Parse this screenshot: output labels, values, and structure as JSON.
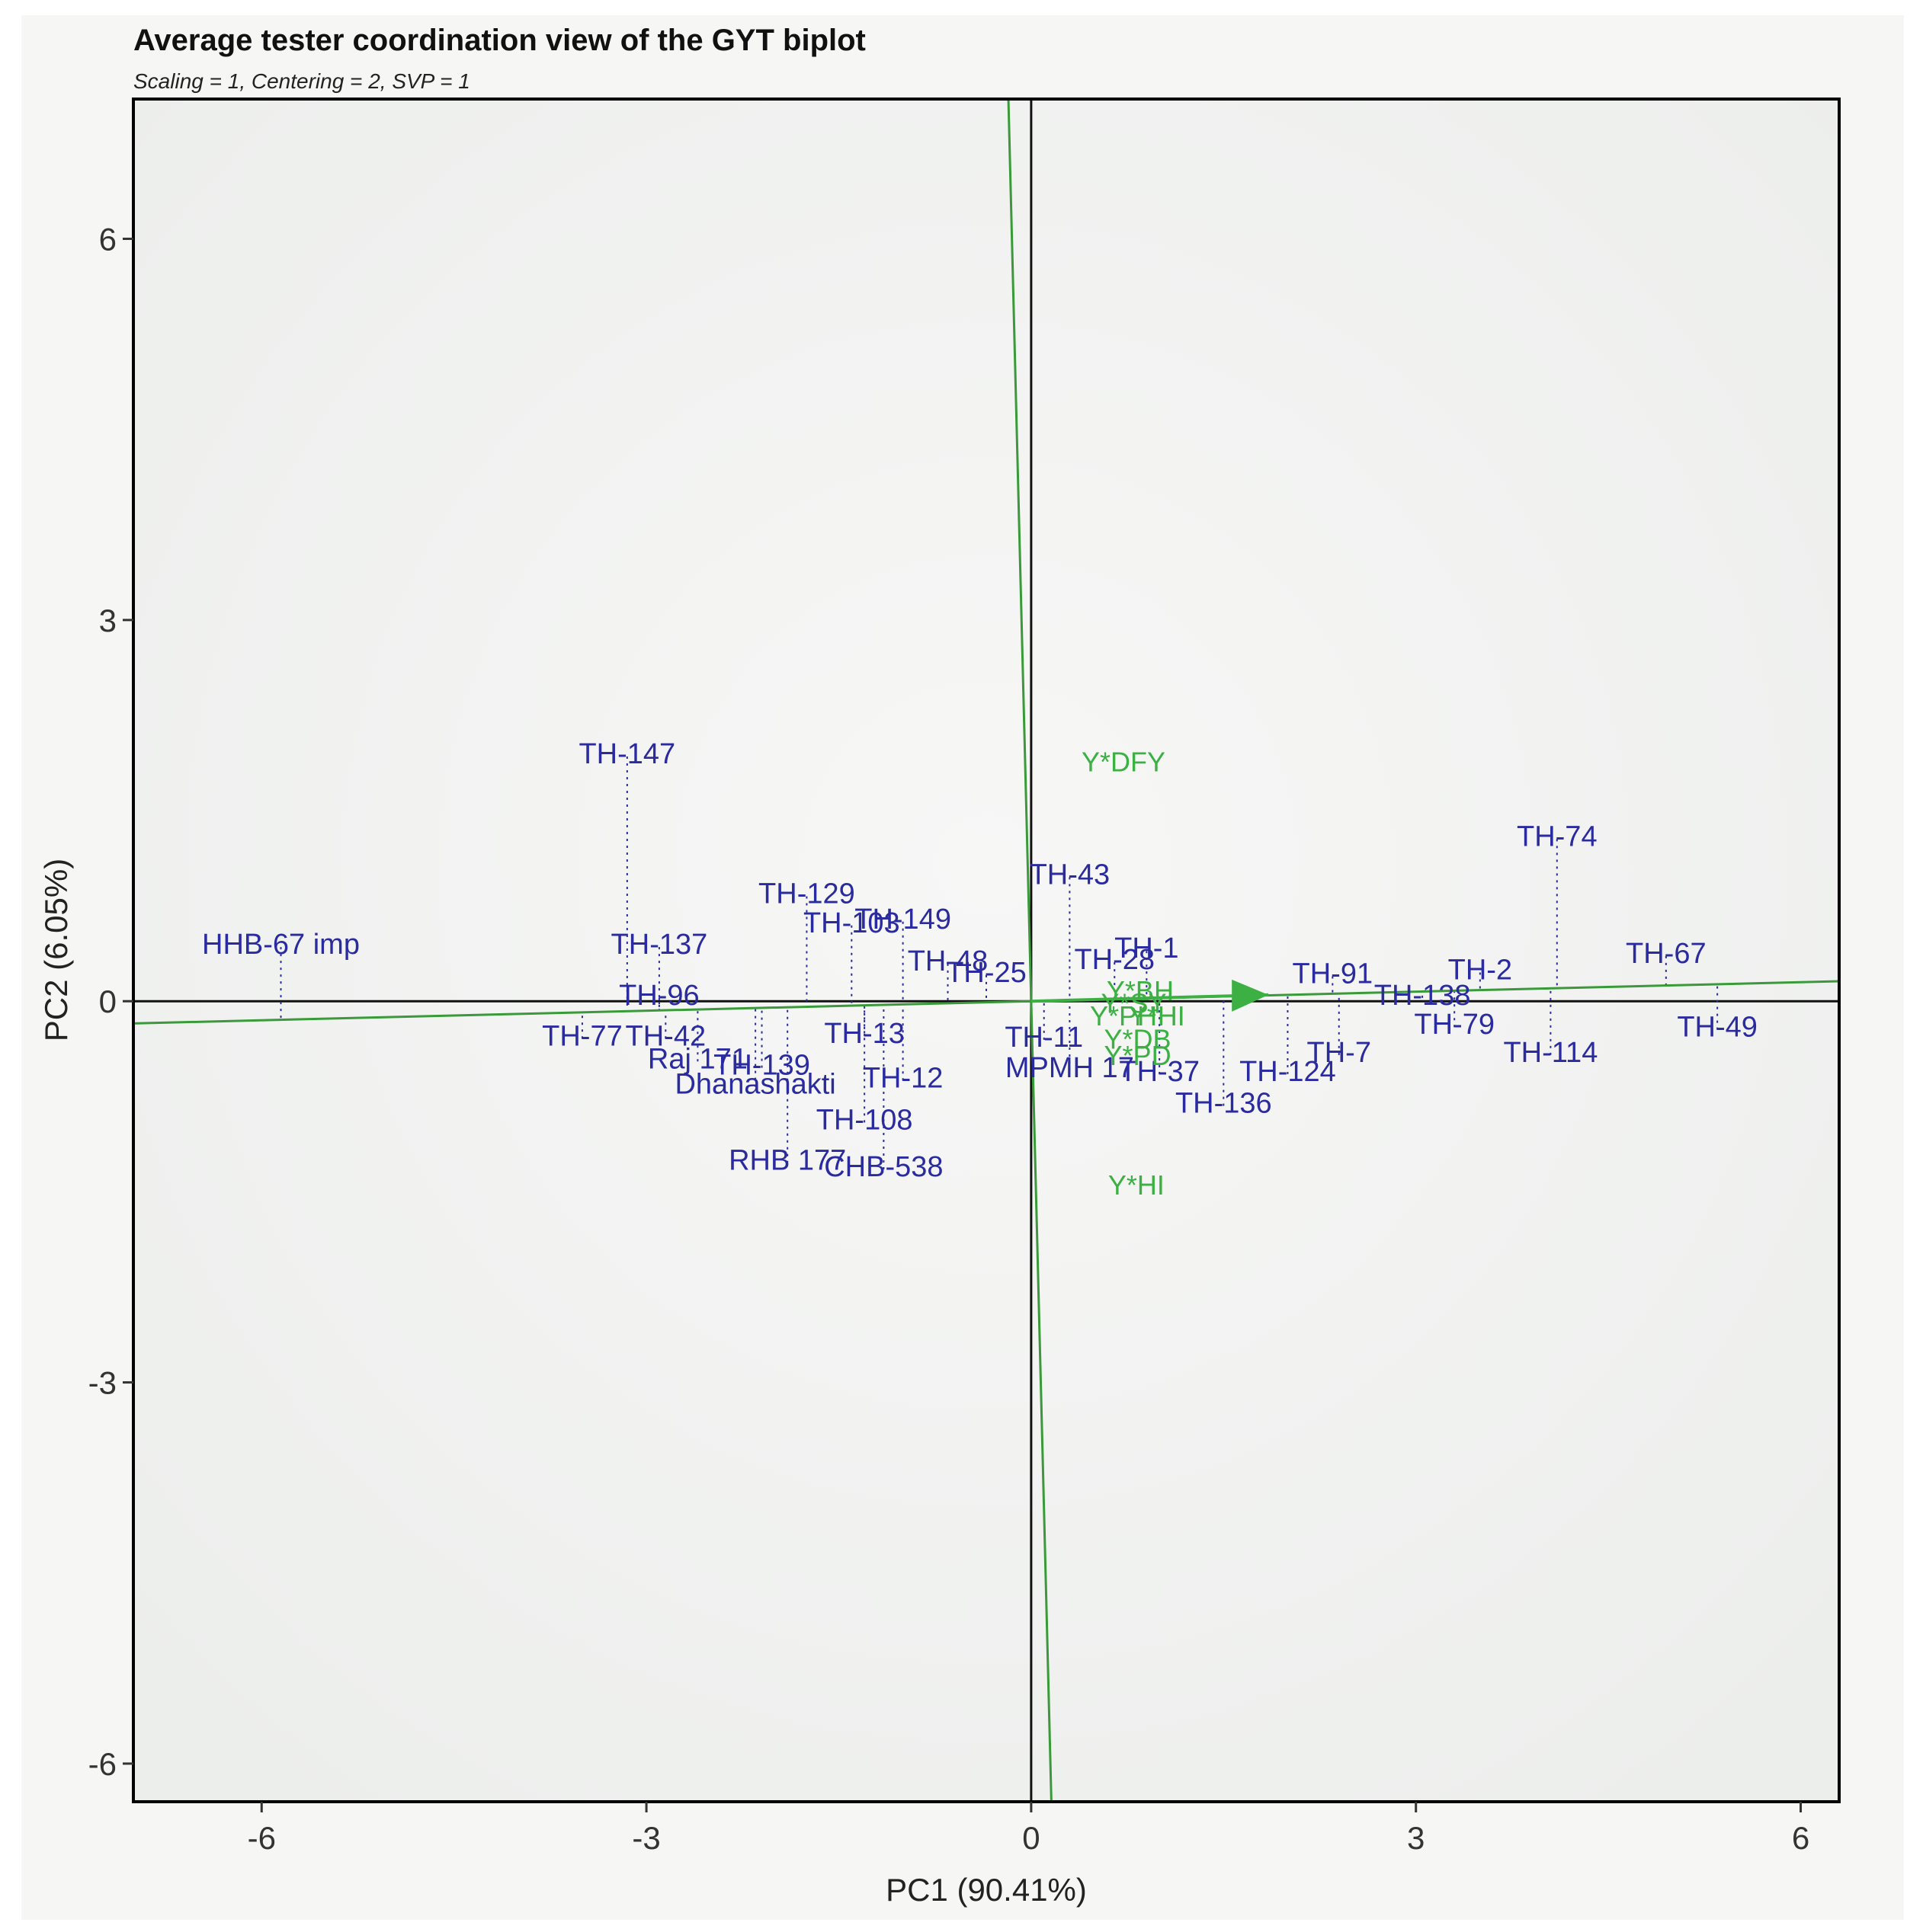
{
  "chart_data": {
    "type": "scatter",
    "title": "Average tester coordination view of the GYT biplot",
    "subtitle": "Scaling = 1, Centering = 2, SVP = 1",
    "xlabel": "PC1 (90.41%)",
    "ylabel": "PC2 (6.05%)",
    "xlim": [
      -7.0,
      6.3
    ],
    "ylim": [
      -6.3,
      7.1
    ],
    "xticks": [
      -6,
      -3,
      0,
      3,
      6
    ],
    "yticks": [
      -6,
      -3,
      0,
      3,
      6
    ],
    "tick_labels_x": [
      "-6",
      "-3",
      "0",
      "3",
      "6"
    ],
    "tick_labels_y": [
      "-6",
      "-3",
      "0",
      "3",
      "6"
    ],
    "colors": {
      "genotype": "#2b2ba0",
      "environment": "#3cb043",
      "ate_line": "#3a9a3a",
      "frame": "#000000",
      "panel": "#f2f3f2"
    },
    "ate_axis": {
      "direction": [
        1.0,
        0.025
      ],
      "arrow_tip": [
        1.85,
        0.05
      ]
    },
    "genotypes": [
      {
        "name": "HHB-67 imp",
        "x": -5.85,
        "y": 0.45,
        "proj": -0.15
      },
      {
        "name": "TH-147",
        "x": -3.15,
        "y": 1.95,
        "proj": -0.08
      },
      {
        "name": "TH-137",
        "x": -2.9,
        "y": 0.45,
        "proj": -0.07
      },
      {
        "name": "TH-96",
        "x": -2.9,
        "y": 0.05,
        "proj": -0.07
      },
      {
        "name": "TH-77",
        "x": -3.5,
        "y": -0.27,
        "proj": -0.09
      },
      {
        "name": "TH-42",
        "x": -2.85,
        "y": -0.27,
        "proj": -0.07
      },
      {
        "name": "Raj 171",
        "x": -2.6,
        "y": -0.45,
        "proj": -0.06
      },
      {
        "name": "TH-139",
        "x": -2.1,
        "y": -0.5,
        "proj": -0.05
      },
      {
        "name": "Dhanashakti",
        "x": -2.15,
        "y": -0.65,
        "proj": -0.05
      },
      {
        "name": "RHB 177",
        "x": -1.9,
        "y": -1.25,
        "proj": -0.05
      },
      {
        "name": "TH-129",
        "x": -1.75,
        "y": 0.85,
        "proj": -0.04
      },
      {
        "name": "TH-103",
        "x": -1.4,
        "y": 0.62,
        "proj": -0.04
      },
      {
        "name": "TH-149",
        "x": -1.0,
        "y": 0.65,
        "proj": -0.03
      },
      {
        "name": "TH-48",
        "x": -0.65,
        "y": 0.32,
        "proj": -0.02
      },
      {
        "name": "TH-25",
        "x": -0.35,
        "y": 0.23,
        "proj": -0.01
      },
      {
        "name": "TH-13",
        "x": -1.3,
        "y": -0.25,
        "proj": -0.03
      },
      {
        "name": "TH-12",
        "x": -1.0,
        "y": -0.6,
        "proj": -0.03
      },
      {
        "name": "TH-108",
        "x": -1.3,
        "y": -0.93,
        "proj": -0.03
      },
      {
        "name": "CHB-538",
        "x": -1.15,
        "y": -1.3,
        "proj": -0.03
      },
      {
        "name": "TH-43",
        "x": 0.3,
        "y": 1.0,
        "proj": 0.01
      },
      {
        "name": "TH-11",
        "x": 0.1,
        "y": -0.28,
        "proj": 0.0
      },
      {
        "name": "MPMH 17",
        "x": 0.3,
        "y": -0.52,
        "proj": 0.01
      },
      {
        "name": "TH-28",
        "x": 0.65,
        "y": 0.33,
        "proj": 0.02
      },
      {
        "name": "TH-1",
        "x": 0.9,
        "y": 0.42,
        "proj": 0.02
      },
      {
        "name": "TH-37",
        "x": 1.0,
        "y": -0.55,
        "proj": 0.03
      },
      {
        "name": "TH-136",
        "x": 1.5,
        "y": -0.8,
        "proj": 0.04
      },
      {
        "name": "TH-124",
        "x": 2.0,
        "y": -0.55,
        "proj": 0.05
      },
      {
        "name": "TH-91",
        "x": 2.35,
        "y": 0.22,
        "proj": 0.06
      },
      {
        "name": "TH-7",
        "x": 2.4,
        "y": -0.4,
        "proj": 0.06
      },
      {
        "name": "TH-138",
        "x": 3.05,
        "y": 0.05,
        "proj": 0.08
      },
      {
        "name": "TH-2",
        "x": 3.5,
        "y": 0.25,
        "proj": 0.09
      },
      {
        "name": "TH-79",
        "x": 3.3,
        "y": -0.18,
        "proj": 0.08
      },
      {
        "name": "TH-74",
        "x": 4.1,
        "y": 1.3,
        "proj": 0.1
      },
      {
        "name": "TH-114",
        "x": 4.05,
        "y": -0.4,
        "proj": 0.1
      },
      {
        "name": "TH-67",
        "x": 4.95,
        "y": 0.38,
        "proj": 0.12
      },
      {
        "name": "TH-49",
        "x": 5.35,
        "y": -0.2,
        "proj": 0.13
      }
    ],
    "environments": [
      {
        "name": "Y*DFY",
        "x": 0.72,
        "y": 1.88
      },
      {
        "name": "Y*BH",
        "x": 0.85,
        "y": 0.08
      },
      {
        "name": "Y*SY",
        "x": 0.8,
        "y": -0.02
      },
      {
        "name": "Y*PH",
        "x": 0.72,
        "y": -0.12
      },
      {
        "name": "Y*HI",
        "x": 0.98,
        "y": -0.12
      },
      {
        "name": "Y*DB",
        "x": 0.83,
        "y": -0.3
      },
      {
        "name": "Y*PD",
        "x": 0.83,
        "y": -0.43
      },
      {
        "name": "Y*HI",
        "x": 0.82,
        "y": -1.45
      }
    ]
  }
}
